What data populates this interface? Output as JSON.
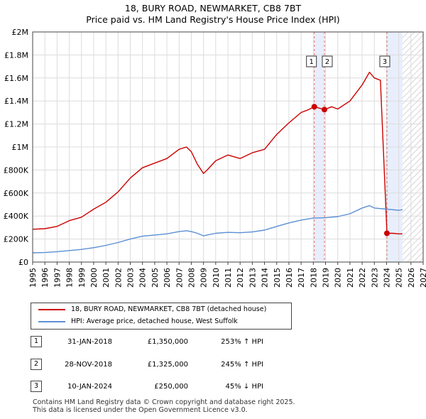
{
  "chart_data": {
    "type": "line",
    "title": "18, BURY ROAD, NEWMARKET, CB8 7BT",
    "subtitle": "Price paid vs. HM Land Registry's House Price Index (HPI)",
    "xlabel": "",
    "ylabel": "",
    "xlim": [
      1995,
      2027
    ],
    "ylim": [
      0,
      2000000
    ],
    "y_ticks": [
      0,
      200000,
      400000,
      600000,
      800000,
      1000000,
      1200000,
      1400000,
      1600000,
      1800000,
      2000000
    ],
    "y_tick_labels": [
      "£0",
      "£200K",
      "£400K",
      "£600K",
      "£800K",
      "£1M",
      "£1.2M",
      "£1.4M",
      "£1.6M",
      "£1.8M",
      "£2M"
    ],
    "x_ticks": [
      1995,
      1996,
      1997,
      1998,
      1999,
      2000,
      2001,
      2002,
      2003,
      2004,
      2005,
      2006,
      2007,
      2008,
      2009,
      2010,
      2011,
      2012,
      2013,
      2014,
      2015,
      2016,
      2017,
      2018,
      2019,
      2020,
      2021,
      2022,
      2023,
      2024,
      2025,
      2026,
      2027
    ],
    "x_tick_labels": [
      "1995",
      "1996",
      "1997",
      "1998",
      "1999",
      "2000",
      "2001",
      "2002",
      "2003",
      "2004",
      "2005",
      "2006",
      "2007",
      "2008",
      "2009",
      "2010",
      "2011",
      "2012",
      "2013",
      "2014",
      "2015",
      "2016",
      "2017",
      "2018",
      "2019",
      "2020",
      "2021",
      "2022",
      "2023",
      "2024",
      "2025",
      "2026",
      "2027"
    ],
    "grid": true,
    "legend_position": "below-left",
    "series": [
      {
        "name": "18, BURY ROAD, NEWMARKET, CB8 7BT (detached house)",
        "color": "#cc0000",
        "x": [
          1995.0,
          1996.0,
          1997.0,
          1998.0,
          1999.0,
          2000.0,
          2001.0,
          2002.0,
          2003.0,
          2004.0,
          2005.0,
          2006.0,
          2007.0,
          2007.6,
          2008.0,
          2008.5,
          2009.0,
          2009.3,
          2010.0,
          2011.0,
          2012.0,
          2013.0,
          2014.0,
          2015.0,
          2016.0,
          2017.0,
          2017.5,
          2018.08,
          2018.91,
          2019.5,
          2020.0,
          2021.0,
          2022.0,
          2022.6,
          2023.0,
          2023.5,
          2024.03,
          2024.5,
          2025.0,
          2025.3
        ],
        "values": [
          285000,
          290000,
          310000,
          360000,
          390000,
          460000,
          520000,
          610000,
          730000,
          820000,
          860000,
          900000,
          980000,
          1000000,
          960000,
          850000,
          770000,
          800000,
          880000,
          930000,
          900000,
          950000,
          980000,
          1110000,
          1210000,
          1300000,
          1320000,
          1350000,
          1325000,
          1350000,
          1330000,
          1400000,
          1540000,
          1650000,
          1600000,
          1580000,
          250000,
          250000,
          245000,
          245000
        ]
      },
      {
        "name": "HPI: Average price, detached house, West Suffolk",
        "color": "#5b8fd4",
        "x": [
          1995.0,
          1996.0,
          1997.0,
          1998.0,
          1999.0,
          2000.0,
          2001.0,
          2002.0,
          2003.0,
          2004.0,
          2005.0,
          2006.0,
          2007.0,
          2007.6,
          2008.0,
          2008.5,
          2009.0,
          2009.3,
          2010.0,
          2011.0,
          2012.0,
          2013.0,
          2014.0,
          2015.0,
          2016.0,
          2017.0,
          2018.0,
          2019.0,
          2020.0,
          2021.0,
          2022.0,
          2022.6,
          2023.0,
          2024.0,
          2025.0,
          2025.3
        ],
        "values": [
          80000,
          83000,
          90000,
          100000,
          110000,
          125000,
          145000,
          170000,
          200000,
          225000,
          235000,
          245000,
          265000,
          272000,
          265000,
          250000,
          228000,
          235000,
          250000,
          258000,
          255000,
          262000,
          278000,
          310000,
          340000,
          365000,
          382000,
          385000,
          395000,
          420000,
          470000,
          490000,
          470000,
          460000,
          450000,
          455000
        ]
      }
    ],
    "sales": [
      {
        "label": "1",
        "x": 2018.08,
        "value": 1350000
      },
      {
        "label": "2",
        "x": 2018.91,
        "value": 1325000
      },
      {
        "label": "3",
        "x": 2024.03,
        "value": 250000
      }
    ],
    "forecast_from": 2025.3
  },
  "legend": {
    "property_label": "18, BURY ROAD, NEWMARKET, CB8 7BT (detached house)",
    "hpi_label": "HPI: Average price, detached house, West Suffolk"
  },
  "sales_table": [
    {
      "num": "1",
      "date": "31-JAN-2018",
      "price": "£1,350,000",
      "hpi": "253% ↑ HPI"
    },
    {
      "num": "2",
      "date": "28-NOV-2018",
      "price": "£1,325,000",
      "hpi": "245% ↑ HPI"
    },
    {
      "num": "3",
      "date": "10-JAN-2024",
      "price": "£250,000",
      "hpi": "45% ↓ HPI"
    }
  ],
  "footer": {
    "line1": "Contains HM Land Registry data © Crown copyright and database right 2025.",
    "line2": "This data is licensed under the Open Government Licence v3.0."
  }
}
